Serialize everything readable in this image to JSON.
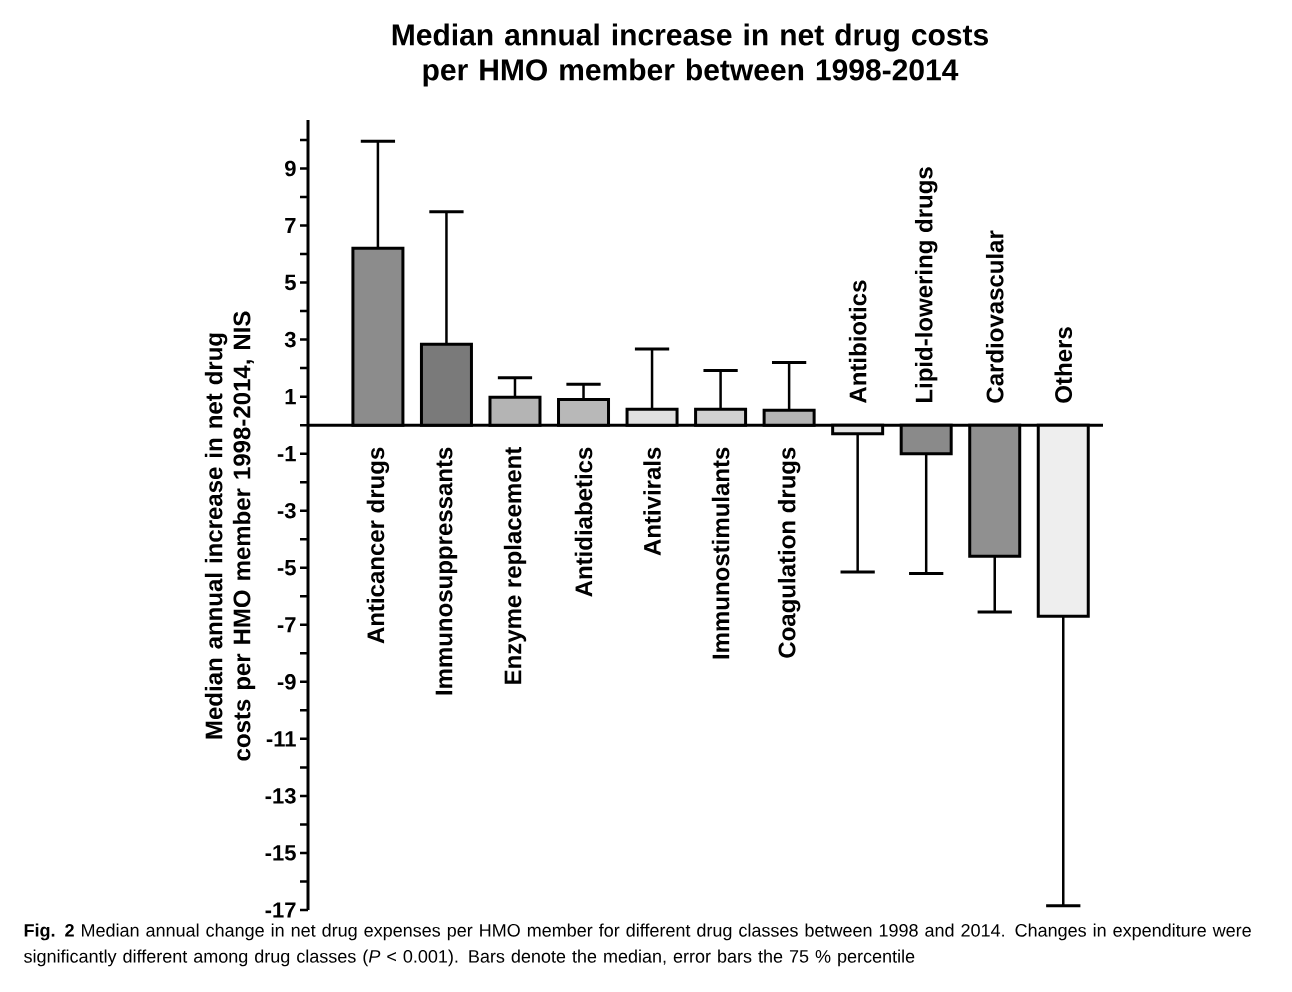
{
  "chart_data": {
    "type": "bar",
    "title": "Median annual increase in net drug costs per HMO member between 1998-2014",
    "ylabel": "Median annual increase in net drug costs per HMO member 1998-2014, NIS",
    "categories": [
      "Anticancer drugs",
      "Immunosuppressants",
      "Enzyme replacement",
      "Antidiabetics",
      "Antivirals",
      "Immunostimulants",
      "Coagulation drugs",
      "Antibiotics",
      "Lipid-lowering drugs",
      "Cardiovascular",
      "Others"
    ],
    "values": [
      6.2,
      2.84,
      0.98,
      0.9,
      0.56,
      0.56,
      0.52,
      -0.3,
      -1.0,
      -4.6,
      -6.7
    ],
    "errors": [
      [
        6.2,
        9.95
      ],
      [
        2.84,
        7.48
      ],
      [
        0.98,
        1.66
      ],
      [
        0.9,
        1.43
      ],
      [
        0.56,
        2.67
      ],
      [
        0.56,
        1.92
      ],
      [
        0.52,
        2.2
      ],
      [
        -5.15,
        -0.3
      ],
      [
        -5.2,
        -1.0
      ],
      [
        -6.55,
        -4.6
      ],
      [
        -16.85,
        -6.7
      ]
    ],
    "colors": [
      "#8c8c8c",
      "#7a7a7a",
      "#b4b4b4",
      "#b8b8b8",
      "#e0e0e0",
      "#d0d0d0",
      "#b4b4b4",
      "#e4e4e4",
      "#8a8a8a",
      "#909090",
      "#eeeeee"
    ],
    "ylim": [
      -17,
      10.7
    ],
    "yticks": [
      -17,
      {
        "value": -16,
        "label": null
      },
      -15,
      {
        "value": -14,
        "label": null
      },
      -13,
      {
        "value": -12,
        "label": null
      },
      -11,
      {
        "value": -10,
        "label": null
      },
      -9,
      {
        "value": -8,
        "label": null
      },
      -7,
      {
        "value": -6,
        "label": null
      },
      -5,
      {
        "value": -4,
        "label": null
      },
      -3,
      {
        "value": -2,
        "label": null
      },
      -1,
      {
        "value": 0,
        "label": null
      },
      1,
      {
        "value": 2,
        "label": null
      },
      3,
      {
        "value": 4,
        "label": null
      },
      5,
      {
        "value": 6,
        "label": null
      },
      7,
      {
        "value": 8,
        "label": null
      },
      9,
      {
        "value": 10,
        "label": null
      }
    ],
    "grid": false,
    "annotations": [
      "**Fig. 2** Median annual change in net drug expenses per HMO member for different drug classes between 1998 and 2014. Changes in expenditure were significantly different among drug classes (*P* < 0.001). Bars denote the median, error bars the 75 % percentile"
    ]
  }
}
